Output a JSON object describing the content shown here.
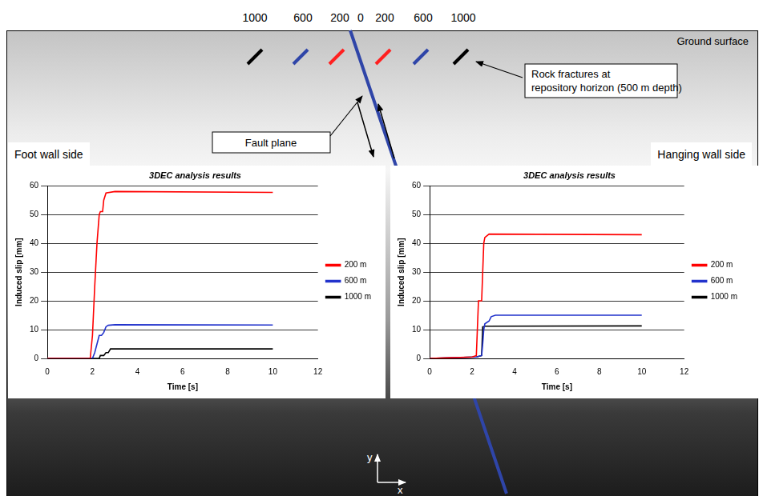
{
  "diagram": {
    "distance_labels": [
      1000,
      600,
      200,
      0,
      200,
      600,
      1000
    ],
    "ground_surface": "Ground surface",
    "fault_label": "Fault plane",
    "fractures_label": "Rock fractures at repository horizon (500 m depth)",
    "foot_wall": "Foot wall side",
    "hanging_wall": "Hanging wall side",
    "axes": {
      "y": "y",
      "x": "x"
    }
  },
  "chart_data": [
    {
      "type": "line",
      "title": "3DEC analysis results",
      "x_label": "Time [s]",
      "y_label": "Induced slip [mm]",
      "xlim": [
        0,
        12
      ],
      "xticks": [
        0,
        2,
        4,
        6,
        8,
        10,
        12
      ],
      "ylim": [
        0,
        60
      ],
      "yticks": [
        0,
        10,
        20,
        30,
        40,
        50,
        60
      ],
      "grid": true,
      "legend": "right",
      "series": [
        {
          "name": "200 m",
          "color": "#ff0000",
          "x": [
            0,
            1.9,
            2.0,
            2.1,
            2.2,
            2.25,
            2.3,
            2.35,
            2.45,
            2.5,
            2.6,
            3.0,
            10
          ],
          "values": [
            0,
            0,
            8,
            25,
            40,
            45,
            50,
            51,
            51,
            55,
            57.5,
            58,
            57.7
          ]
        },
        {
          "name": "600 m",
          "color": "#2233cc",
          "x": [
            0,
            2.0,
            2.1,
            2.2,
            2.3,
            2.4,
            2.5,
            2.6,
            2.7,
            3.0,
            10
          ],
          "values": [
            0,
            0,
            2,
            5,
            8,
            8,
            9,
            11,
            11.5,
            11.7,
            11.6
          ]
        },
        {
          "name": "1000 m",
          "color": "#000000",
          "x": [
            0,
            2.3,
            2.35,
            2.5,
            2.6,
            2.7,
            2.8,
            10
          ],
          "values": [
            0,
            0,
            1,
            1,
            2,
            2,
            3.3,
            3.3
          ]
        }
      ]
    },
    {
      "type": "line",
      "title": "3DEC analysis results",
      "x_label": "Time [s]",
      "y_label": "Induced slip [mm]",
      "xlim": [
        0,
        12
      ],
      "xticks": [
        0,
        2,
        4,
        6,
        8,
        10,
        12
      ],
      "ylim": [
        0,
        60
      ],
      "yticks": [
        0,
        10,
        20,
        30,
        40,
        50,
        60
      ],
      "grid": true,
      "legend": "right",
      "series": [
        {
          "name": "200 m",
          "color": "#ff0000",
          "x": [
            0,
            2.0,
            2.2,
            2.3,
            2.35,
            2.45,
            2.5,
            2.55,
            2.6,
            2.8,
            10
          ],
          "values": [
            0,
            0.5,
            1,
            20,
            20,
            20,
            30,
            40,
            42,
            43.2,
            43
          ]
        },
        {
          "name": "600 m",
          "color": "#2233cc",
          "x": [
            0,
            2.2,
            2.45,
            2.5,
            2.55,
            2.6,
            2.8,
            2.9,
            3.1,
            10
          ],
          "values": [
            0,
            0.5,
            1,
            5,
            10,
            12,
            13,
            14.5,
            15,
            15
          ]
        },
        {
          "name": "1000 m",
          "color": "#000000",
          "x": [
            0,
            2.2,
            2.45,
            2.5,
            2.55,
            2.6,
            10
          ],
          "values": [
            0,
            0.5,
            1,
            11,
            11,
            11.2,
            11.3
          ]
        }
      ]
    }
  ]
}
